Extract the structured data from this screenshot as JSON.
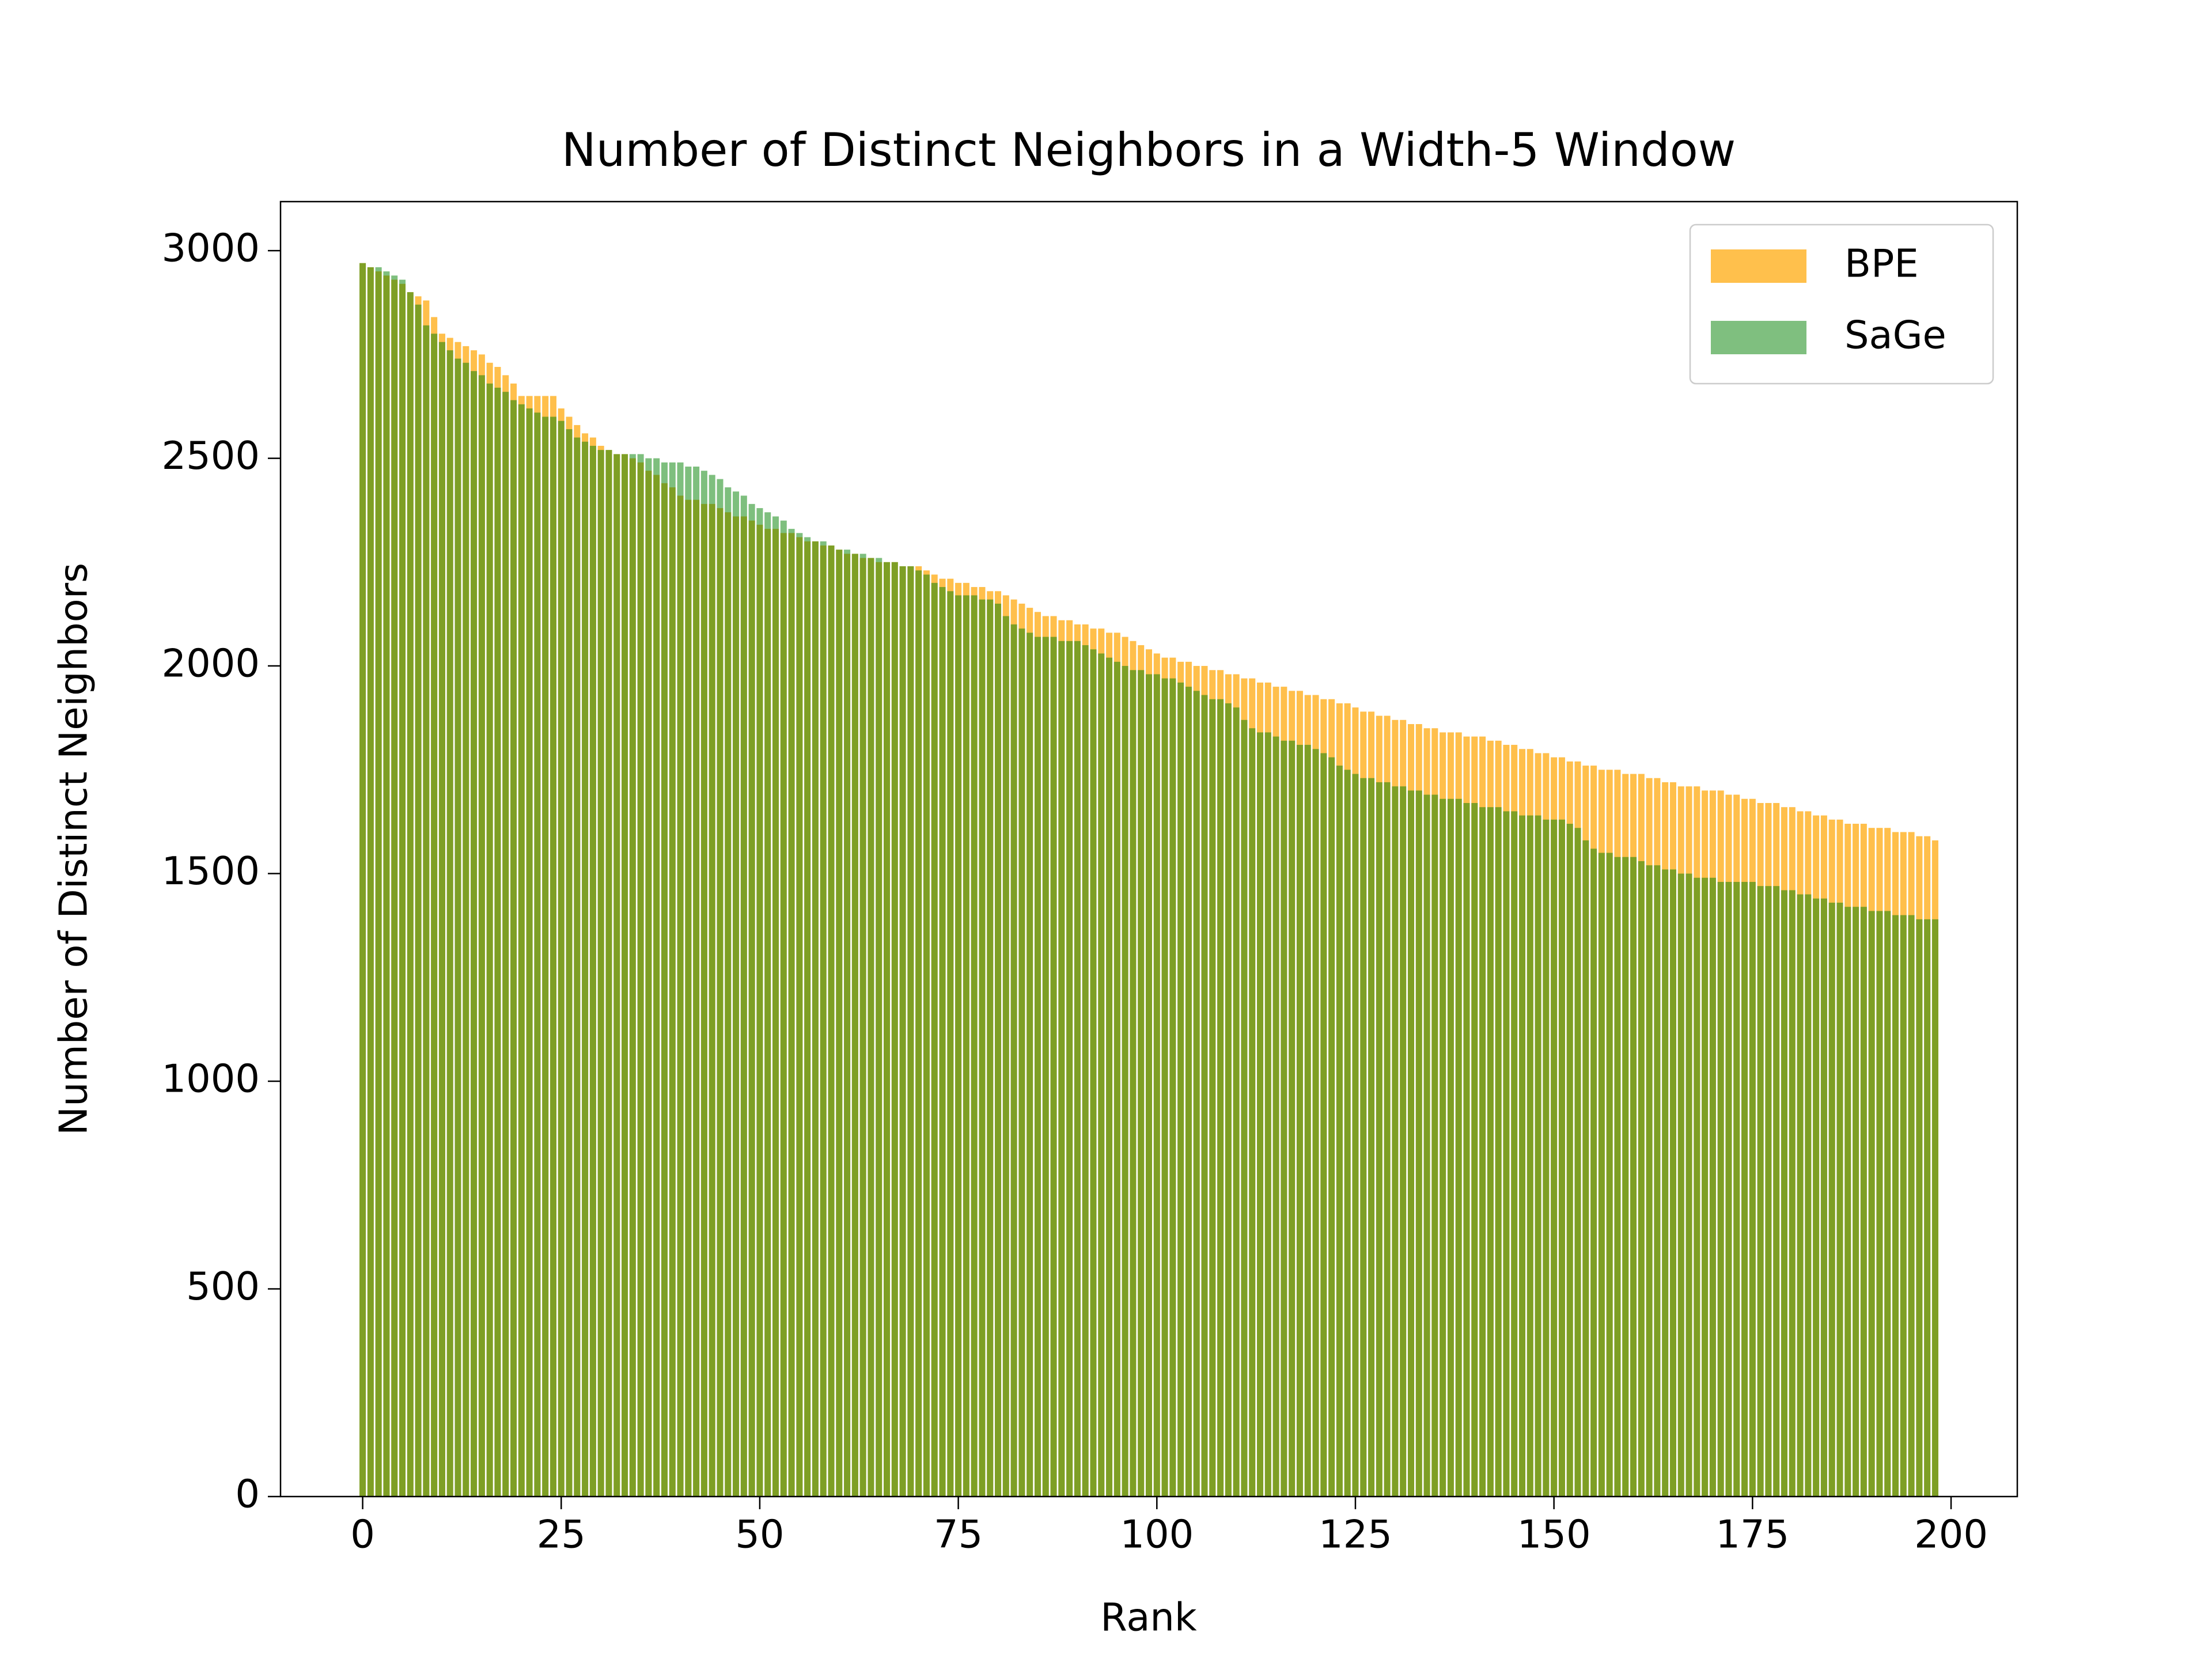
{
  "chart_data": {
    "type": "bar",
    "title": "Number of Distinct Neighbors in a Width-5 Window",
    "xlabel": "Rank",
    "ylabel": "Number of Distinct Neighbors",
    "x": [
      0,
      1,
      2,
      3,
      4,
      5,
      6,
      7,
      8,
      9,
      10,
      11,
      12,
      13,
      14,
      15,
      16,
      17,
      18,
      19,
      20,
      21,
      22,
      23,
      24,
      25,
      26,
      27,
      28,
      29,
      30,
      31,
      32,
      33,
      34,
      35,
      36,
      37,
      38,
      39,
      40,
      41,
      42,
      43,
      44,
      45,
      46,
      47,
      48,
      49,
      50,
      51,
      52,
      53,
      54,
      55,
      56,
      57,
      58,
      59,
      60,
      61,
      62,
      63,
      64,
      65,
      66,
      67,
      68,
      69,
      70,
      71,
      72,
      73,
      74,
      75,
      76,
      77,
      78,
      79,
      80,
      81,
      82,
      83,
      84,
      85,
      86,
      87,
      88,
      89,
      90,
      91,
      92,
      93,
      94,
      95,
      96,
      97,
      98,
      99,
      100,
      101,
      102,
      103,
      104,
      105,
      106,
      107,
      108,
      109,
      110,
      111,
      112,
      113,
      114,
      115,
      116,
      117,
      118,
      119,
      120,
      121,
      122,
      123,
      124,
      125,
      126,
      127,
      128,
      129,
      130,
      131,
      132,
      133,
      134,
      135,
      136,
      137,
      138,
      139,
      140,
      141,
      142,
      143,
      144,
      145,
      146,
      147,
      148,
      149,
      150,
      151,
      152,
      153,
      154,
      155,
      156,
      157,
      158,
      159,
      160,
      161,
      162,
      163,
      164,
      165,
      166,
      167,
      168,
      169,
      170,
      171,
      172,
      173,
      174,
      175,
      176,
      177,
      178,
      179,
      180,
      181,
      182,
      183,
      184,
      185,
      186,
      187,
      188,
      189,
      190,
      191,
      192,
      193,
      194,
      195,
      196,
      197,
      198
    ],
    "series": [
      {
        "name": "BPE",
        "color": "#ffa500",
        "opacity": 0.7,
        "values": [
          2970,
          2960,
          2950,
          2940,
          2930,
          2920,
          2900,
          2890,
          2880,
          2840,
          2800,
          2790,
          2780,
          2770,
          2760,
          2750,
          2730,
          2720,
          2700,
          2680,
          2650,
          2650,
          2650,
          2650,
          2650,
          2620,
          2600,
          2580,
          2560,
          2550,
          2530,
          2520,
          2510,
          2510,
          2500,
          2490,
          2470,
          2460,
          2440,
          2430,
          2410,
          2400,
          2400,
          2390,
          2390,
          2380,
          2370,
          2360,
          2360,
          2350,
          2340,
          2330,
          2330,
          2320,
          2320,
          2310,
          2300,
          2300,
          2290,
          2290,
          2280,
          2270,
          2270,
          2260,
          2260,
          2250,
          2250,
          2250,
          2240,
          2240,
          2240,
          2230,
          2220,
          2210,
          2210,
          2200,
          2200,
          2190,
          2190,
          2180,
          2180,
          2170,
          2160,
          2150,
          2140,
          2130,
          2120,
          2120,
          2110,
          2110,
          2100,
          2100,
          2090,
          2090,
          2080,
          2080,
          2070,
          2060,
          2050,
          2040,
          2030,
          2020,
          2020,
          2010,
          2010,
          2000,
          2000,
          1990,
          1990,
          1980,
          1980,
          1970,
          1970,
          1960,
          1960,
          1950,
          1950,
          1940,
          1940,
          1930,
          1930,
          1920,
          1920,
          1910,
          1910,
          1900,
          1890,
          1890,
          1880,
          1880,
          1870,
          1870,
          1860,
          1860,
          1850,
          1850,
          1840,
          1840,
          1840,
          1830,
          1830,
          1830,
          1820,
          1820,
          1810,
          1810,
          1800,
          1800,
          1790,
          1790,
          1780,
          1780,
          1770,
          1770,
          1760,
          1760,
          1750,
          1750,
          1750,
          1740,
          1740,
          1740,
          1730,
          1730,
          1720,
          1720,
          1710,
          1710,
          1710,
          1700,
          1700,
          1700,
          1690,
          1690,
          1680,
          1680,
          1670,
          1670,
          1670,
          1660,
          1660,
          1650,
          1650,
          1640,
          1640,
          1630,
          1630,
          1620,
          1620,
          1620,
          1610,
          1610,
          1610,
          1600,
          1600,
          1600,
          1590,
          1590,
          1580
        ]
      },
      {
        "name": "SaGe",
        "color": "#008000",
        "opacity": 0.5,
        "values": [
          2970,
          2960,
          2960,
          2950,
          2940,
          2930,
          2900,
          2870,
          2820,
          2800,
          2780,
          2760,
          2740,
          2730,
          2710,
          2700,
          2680,
          2670,
          2660,
          2640,
          2630,
          2620,
          2610,
          2600,
          2600,
          2590,
          2570,
          2550,
          2540,
          2530,
          2520,
          2520,
          2510,
          2510,
          2510,
          2510,
          2500,
          2500,
          2490,
          2490,
          2490,
          2480,
          2480,
          2470,
          2460,
          2450,
          2430,
          2420,
          2410,
          2390,
          2380,
          2370,
          2360,
          2350,
          2330,
          2320,
          2310,
          2300,
          2300,
          2290,
          2280,
          2280,
          2270,
          2270,
          2260,
          2260,
          2250,
          2250,
          2240,
          2240,
          2230,
          2220,
          2200,
          2190,
          2180,
          2170,
          2170,
          2170,
          2160,
          2160,
          2150,
          2120,
          2100,
          2090,
          2080,
          2070,
          2070,
          2070,
          2060,
          2060,
          2060,
          2050,
          2040,
          2030,
          2020,
          2010,
          2000,
          1990,
          1990,
          1980,
          1980,
          1970,
          1970,
          1960,
          1950,
          1940,
          1930,
          1920,
          1920,
          1910,
          1900,
          1870,
          1850,
          1840,
          1840,
          1830,
          1820,
          1820,
          1810,
          1810,
          1800,
          1790,
          1780,
          1760,
          1750,
          1740,
          1730,
          1730,
          1720,
          1720,
          1710,
          1710,
          1700,
          1700,
          1690,
          1690,
          1680,
          1680,
          1680,
          1670,
          1670,
          1660,
          1660,
          1660,
          1650,
          1650,
          1640,
          1640,
          1640,
          1630,
          1630,
          1630,
          1620,
          1610,
          1580,
          1560,
          1550,
          1550,
          1540,
          1540,
          1540,
          1530,
          1520,
          1520,
          1510,
          1510,
          1500,
          1500,
          1490,
          1490,
          1490,
          1480,
          1480,
          1480,
          1480,
          1480,
          1470,
          1470,
          1470,
          1460,
          1460,
          1450,
          1450,
          1440,
          1440,
          1430,
          1430,
          1420,
          1420,
          1420,
          1410,
          1410,
          1410,
          1400,
          1400,
          1400,
          1390,
          1390,
          1390
        ]
      }
    ],
    "bar_width": 0.8,
    "xlim": [
      -10.34,
      208.34
    ],
    "ylim": [
      0,
      3118
    ],
    "xticks": [
      0,
      25,
      50,
      75,
      100,
      125,
      150,
      175,
      200
    ],
    "yticks": [
      0,
      500,
      1000,
      1500,
      2000,
      2500,
      3000
    ],
    "legend": "upper right"
  }
}
